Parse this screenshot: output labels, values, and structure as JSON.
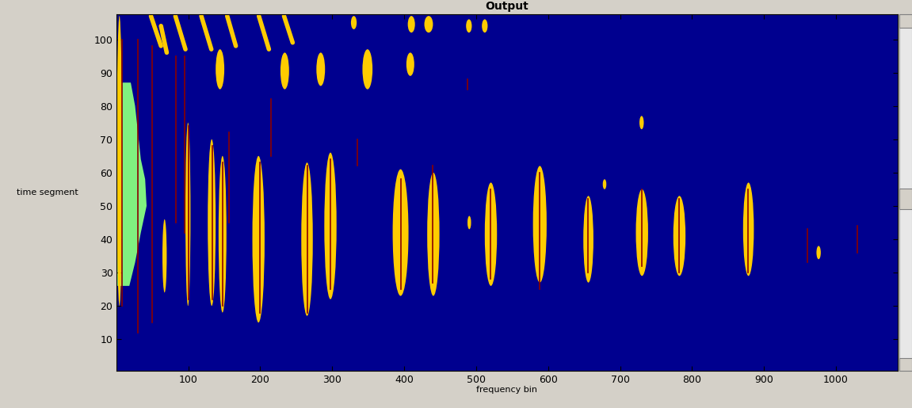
{
  "chart_data": {
    "type": "heatmap",
    "title": "Output",
    "x_label": "frequency bin",
    "y_label": "time segment",
    "xlim": [
      0.5,
      1085.5
    ],
    "ylim": [
      0.5,
      107.5
    ],
    "xticks": [
      100,
      200,
      300,
      400,
      500,
      600,
      700,
      800,
      900,
      1000
    ],
    "yticks": [
      10,
      20,
      30,
      40,
      50,
      60,
      70,
      80,
      90,
      100
    ],
    "color": "#00008f",
    "area": {
      "color": "#80f080",
      "points": [
        [
          0.5,
          26
        ],
        [
          18,
          26
        ],
        [
          26,
          33
        ],
        [
          34,
          42
        ],
        [
          42,
          50
        ],
        [
          40,
          58
        ],
        [
          34,
          64
        ],
        [
          30,
          72
        ],
        [
          26,
          80
        ],
        [
          20,
          87
        ],
        [
          0.5,
          87
        ]
      ]
    },
    "blobs": {
      "color": "#ffcc00",
      "boxes": [
        [
          0.5,
          8,
          20,
          107
        ],
        [
          64,
          70,
          24,
          46
        ],
        [
          96,
          103,
          20,
          75
        ],
        [
          127,
          138,
          20,
          70
        ],
        [
          142,
          153,
          18,
          65
        ],
        [
          189,
          206,
          15,
          65
        ],
        [
          257,
          273,
          17,
          63
        ],
        [
          289,
          306,
          22,
          66
        ],
        [
          384,
          406,
          23,
          61
        ],
        [
          432,
          449,
          23,
          60
        ],
        [
          512,
          529,
          26,
          57
        ],
        [
          579,
          598,
          27,
          62
        ],
        [
          649,
          663,
          27,
          53
        ],
        [
          722,
          739,
          29,
          55
        ],
        [
          774,
          791,
          29,
          53
        ],
        [
          871,
          886,
          29,
          57
        ],
        [
          488,
          493,
          43,
          47
        ],
        [
          973,
          979,
          34,
          38
        ],
        [
          727,
          733,
          73,
          77
        ],
        [
          676,
          681,
          55,
          58
        ],
        [
          138,
          150,
          85,
          97
        ],
        [
          228,
          240,
          85,
          96
        ],
        [
          278,
          290,
          86,
          96
        ],
        [
          342,
          356,
          85,
          97
        ],
        [
          403,
          414,
          89,
          96
        ],
        [
          326,
          334,
          103,
          107
        ],
        [
          405,
          415,
          102,
          107
        ],
        [
          428,
          440,
          102,
          107
        ],
        [
          486,
          494,
          102,
          106
        ],
        [
          508,
          516,
          102,
          106
        ]
      ]
    },
    "streaks": {
      "color": "#ffcc00",
      "segments": [
        [
          48,
          107,
          62,
          98
        ],
        [
          82,
          107,
          96,
          97
        ],
        [
          118,
          107,
          132,
          97
        ],
        [
          154,
          107,
          166,
          98
        ],
        [
          198,
          107,
          212,
          97
        ],
        [
          233,
          107,
          245,
          99
        ],
        [
          62,
          104,
          70,
          96
        ]
      ]
    },
    "lines": {
      "color": "#8b0000",
      "segments": [
        [
          8,
          20,
          100
        ],
        [
          30,
          12,
          100
        ],
        [
          50,
          15,
          98
        ],
        [
          83,
          45,
          95
        ],
        [
          95,
          42,
          95
        ],
        [
          100,
          22,
          74
        ],
        [
          133,
          22,
          68
        ],
        [
          148,
          20,
          63
        ],
        [
          157,
          45,
          72
        ],
        [
          200,
          18,
          63
        ],
        [
          215,
          65,
          82
        ],
        [
          265,
          18,
          62
        ],
        [
          297,
          25,
          64
        ],
        [
          335,
          62,
          70
        ],
        [
          395,
          25,
          58
        ],
        [
          440,
          27,
          62
        ],
        [
          488,
          85,
          88
        ],
        [
          520,
          28,
          55
        ],
        [
          588,
          25,
          60
        ],
        [
          655,
          30,
          52
        ],
        [
          730,
          32,
          55
        ],
        [
          782,
          30,
          52
        ],
        [
          878,
          30,
          55
        ],
        [
          960,
          33,
          43
        ],
        [
          1030,
          36,
          44
        ]
      ]
    }
  }
}
